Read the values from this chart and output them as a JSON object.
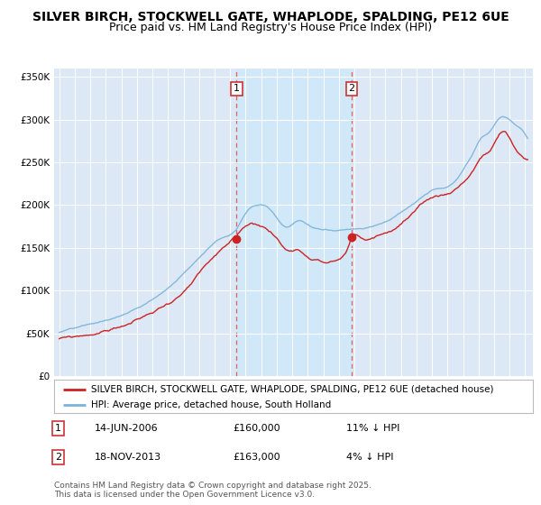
{
  "title": "SILVER BIRCH, STOCKWELL GATE, WHAPLODE, SPALDING, PE12 6UE",
  "subtitle": "Price paid vs. HM Land Registry's House Price Index (HPI)",
  "ylim": [
    0,
    360000
  ],
  "yticks": [
    0,
    50000,
    100000,
    150000,
    200000,
    250000,
    300000,
    350000
  ],
  "ytick_labels": [
    "£0",
    "£50K",
    "£100K",
    "£150K",
    "£200K",
    "£250K",
    "£300K",
    "£350K"
  ],
  "hpi_color": "#7ab3d8",
  "price_color": "#cc2222",
  "marker1_price": 160000,
  "marker2_price": 163000,
  "legend_label1": "SILVER BIRCH, STOCKWELL GATE, WHAPLODE, SPALDING, PE12 6UE (detached house)",
  "legend_label2": "HPI: Average price, detached house, South Holland",
  "footnote": "Contains HM Land Registry data © Crown copyright and database right 2025.\nThis data is licensed under the Open Government Licence v3.0.",
  "bg_color": "#ffffff",
  "plot_bg_color": "#dce8f5",
  "grid_color": "#ffffff",
  "vline_color": "#e06060",
  "span_color": "#d0e8f8",
  "title_fontsize": 10,
  "subtitle_fontsize": 9,
  "tick_fontsize": 7.5,
  "legend_fontsize": 7.5,
  "footnote_fontsize": 6.5
}
